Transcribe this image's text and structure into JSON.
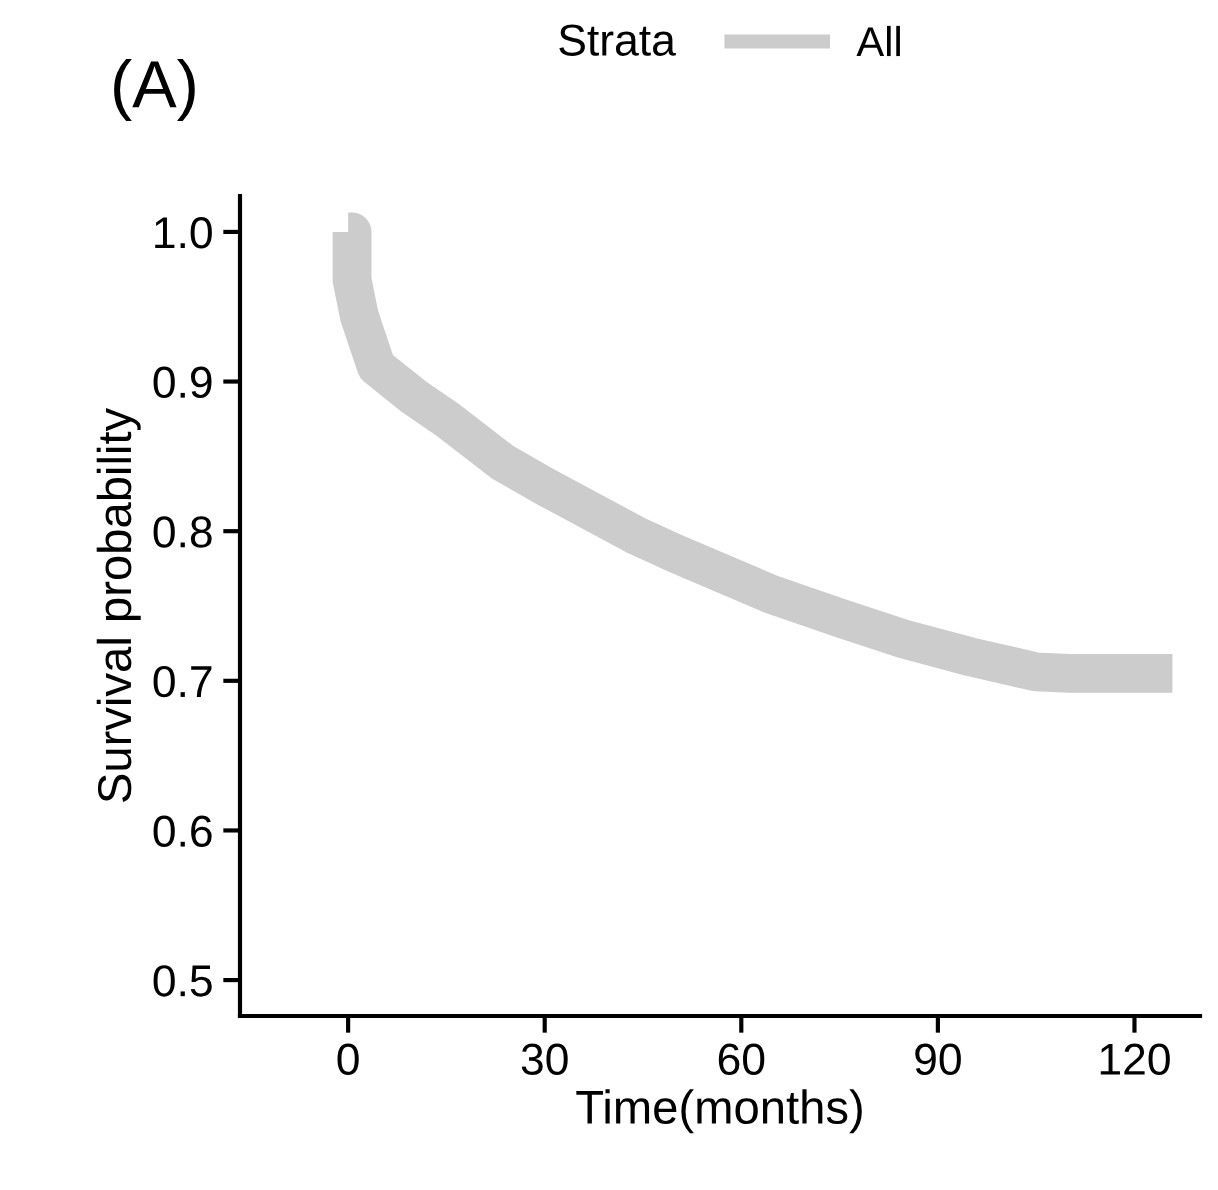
{
  "chart_data": {
    "type": "line",
    "title": "(A)",
    "xlabel": "Time(months)",
    "ylabel": "Survival probability",
    "legend_title": "Strata",
    "legend": "top",
    "series": [
      {
        "name": "All",
        "color": "#cccccc",
        "x": [
          0,
          0.6,
          0.6,
          1.7,
          4.3,
          10,
          15,
          23.6,
          30,
          44,
          50,
          64.5,
          75,
          84.8,
          95,
          105,
          110,
          122.8,
          125.8
        ],
        "values": [
          1.0,
          1.0,
          0.968,
          0.944,
          0.91,
          0.89,
          0.875,
          0.846,
          0.83,
          0.797,
          0.785,
          0.758,
          0.742,
          0.728,
          0.716,
          0.706,
          0.705,
          0.705,
          0.705
        ]
      }
    ],
    "xlim": [
      -16.5,
      130
    ],
    "xticks": [
      0,
      30,
      60,
      90,
      120
    ],
    "ylim": [
      0.476,
      1.024
    ],
    "yticks": [
      {
        "value": 0.5,
        "label": "0.5"
      },
      {
        "value": 0.6,
        "label": "0.6"
      },
      {
        "value": 0.7,
        "label": "0.7"
      },
      {
        "value": 0.8,
        "label": "0.8"
      },
      {
        "value": 0.9,
        "label": "0.9"
      },
      {
        "value": 1.0,
        "label": "1.0"
      }
    ],
    "grid": false
  }
}
